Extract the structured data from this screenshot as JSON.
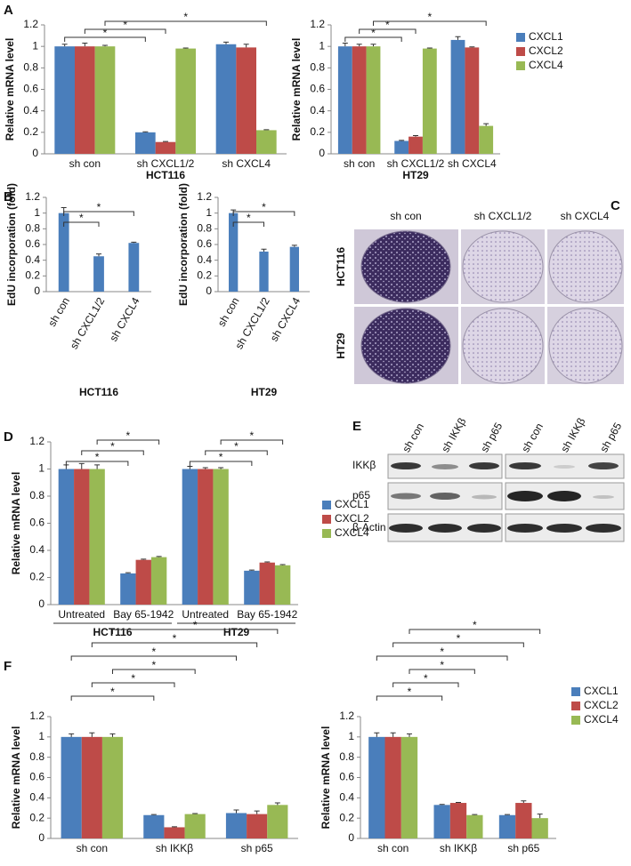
{
  "panels": {
    "letters": [
      "A",
      "B",
      "C",
      "D",
      "E",
      "F"
    ]
  },
  "colony_assay": {
    "columns": [
      "sh con",
      "sh CXCL1/2",
      "sh CXCL4"
    ],
    "rows": [
      "HCT116",
      "HT29"
    ]
  },
  "western_blot": {
    "lanes": [
      "sh con",
      "sh IKKβ",
      "sh p65",
      "sh con",
      "sh IKKβ",
      "sh p65"
    ],
    "rows": [
      "IKKβ",
      "p65",
      "β-Actin"
    ]
  },
  "chart_data": [
    {
      "type": "bar",
      "categories": [
        "sh con",
        "sh CXCL1/2",
        "sh CXCL4"
      ],
      "series": [
        {
          "name": "CXCL1",
          "color": "#4a7ebb",
          "values": [
            1.0,
            0.2,
            1.02
          ],
          "errors": [
            0.02,
            0.005,
            0.02
          ]
        },
        {
          "name": "CXCL2",
          "color": "#be4b48",
          "values": [
            1.0,
            0.11,
            0.99
          ],
          "errors": [
            0.03,
            0.005,
            0.03
          ]
        },
        {
          "name": "CXCL4",
          "color": "#98b954",
          "values": [
            1.0,
            0.98,
            0.22
          ],
          "errors": [
            0.01,
            0.005,
            0.005
          ]
        }
      ],
      "ylabel": "Relative mRNA level",
      "xlabel": "HCT116",
      "ylim": [
        0,
        1.2
      ],
      "yticks": [
        0,
        0.2,
        0.4,
        0.6,
        0.8,
        1,
        1.2
      ],
      "legend": false,
      "comparisons": [
        {
          "between": [
            0,
            1
          ],
          "label": "*"
        },
        {
          "between": [
            0,
            1
          ],
          "label": "*"
        },
        {
          "between": [
            0,
            2
          ],
          "label": "*"
        }
      ]
    },
    {
      "type": "bar",
      "categories": [
        "sh con",
        "sh CXCL1/2",
        "sh CXCL4"
      ],
      "series": [
        {
          "name": "CXCL1",
          "color": "#4a7ebb",
          "values": [
            1.0,
            0.12,
            1.06
          ],
          "errors": [
            0.03,
            0.005,
            0.03
          ]
        },
        {
          "name": "CXCL2",
          "color": "#be4b48",
          "values": [
            1.0,
            0.16,
            0.99
          ],
          "errors": [
            0.02,
            0.01,
            0.005
          ]
        },
        {
          "name": "CXCL4",
          "color": "#98b954",
          "values": [
            1.0,
            0.98,
            0.26
          ],
          "errors": [
            0.02,
            0.005,
            0.02
          ]
        }
      ],
      "ylabel": "Relative mRNA level",
      "xlabel": "HT29",
      "ylim": [
        0,
        1.2
      ],
      "yticks": [
        0,
        0.2,
        0.4,
        0.6,
        0.8,
        1,
        1.2
      ],
      "legend": "right",
      "comparisons": [
        {
          "between": [
            0,
            1
          ],
          "label": "*"
        },
        {
          "between": [
            0,
            1
          ],
          "label": "*"
        },
        {
          "between": [
            0,
            2
          ],
          "label": "*"
        }
      ]
    },
    {
      "type": "bar",
      "categories": [
        "sh con",
        "sh CXCL1/2",
        "sh CXCL4"
      ],
      "values": [
        1.0,
        0.45,
        0.62
      ],
      "errors": [
        0.07,
        0.03,
        0.01
      ],
      "color": "#4a7ebb",
      "ylabel": "EdU incorporation (fold)",
      "xlabel": "HCT116",
      "ylim": [
        0,
        1.2
      ],
      "yticks": [
        0,
        0.2,
        0.4,
        0.6,
        0.8,
        1,
        1.2
      ],
      "xtick_rotation": -60,
      "legend": false,
      "comparisons": [
        {
          "between": [
            0,
            1
          ],
          "label": "*"
        },
        {
          "between": [
            0,
            2
          ],
          "label": "*"
        }
      ]
    },
    {
      "type": "bar",
      "categories": [
        "sh con",
        "sh CXCL1/2",
        "sh CXCL4"
      ],
      "values": [
        1.0,
        0.51,
        0.57
      ],
      "errors": [
        0.04,
        0.03,
        0.02
      ],
      "color": "#4a7ebb",
      "ylabel": "EdU incorporation (fold)",
      "xlabel": "HT29",
      "ylim": [
        0,
        1.2
      ],
      "yticks": [
        0,
        0.2,
        0.4,
        0.6,
        0.8,
        1,
        1.2
      ],
      "xtick_rotation": -60,
      "legend": false,
      "comparisons": [
        {
          "between": [
            0,
            1
          ],
          "label": "*"
        },
        {
          "between": [
            0,
            2
          ],
          "label": "*"
        }
      ]
    },
    {
      "type": "bar",
      "categories": [
        "Untreated",
        "Bay 65-1942",
        "Untreated",
        "Bay 65-1942"
      ],
      "group_labels": [
        "HCT116",
        "HT29"
      ],
      "series": [
        {
          "name": "CXCL1",
          "color": "#4a7ebb",
          "values": [
            1.0,
            0.23,
            1.0,
            0.25
          ],
          "errors": [
            0.03,
            0.005,
            0.02,
            0.005
          ]
        },
        {
          "name": "CXCL2",
          "color": "#be4b48",
          "values": [
            1.0,
            0.33,
            1.0,
            0.31
          ],
          "errors": [
            0.04,
            0.005,
            0.01,
            0.005
          ]
        },
        {
          "name": "CXCL4",
          "color": "#98b954",
          "values": [
            1.0,
            0.35,
            1.0,
            0.29
          ],
          "errors": [
            0.03,
            0.005,
            0.01,
            0.005
          ]
        }
      ],
      "ylabel": "Relative mRNA level",
      "ylim": [
        0,
        1.2
      ],
      "yticks": [
        0,
        0.2,
        0.4,
        0.6,
        0.8,
        1,
        1.2
      ],
      "legend": "right",
      "comparisons": [
        {
          "between": [
            0,
            1
          ],
          "label": "*"
        },
        {
          "between": [
            0,
            1
          ],
          "label": "*"
        },
        {
          "between": [
            0,
            1
          ],
          "label": "*"
        },
        {
          "between": [
            2,
            3
          ],
          "label": "*"
        },
        {
          "between": [
            2,
            3
          ],
          "label": "*"
        },
        {
          "between": [
            2,
            3
          ],
          "label": "*"
        }
      ]
    },
    {
      "type": "bar",
      "categories": [
        "sh con",
        "sh IKKβ",
        "sh p65"
      ],
      "series": [
        {
          "name": "CXCL1",
          "color": "#4a7ebb",
          "values": [
            1.0,
            0.23,
            0.25
          ],
          "errors": [
            0.03,
            0.005,
            0.03
          ]
        },
        {
          "name": "CXCL2",
          "color": "#be4b48",
          "values": [
            1.0,
            0.11,
            0.24
          ],
          "errors": [
            0.04,
            0.005,
            0.03
          ]
        },
        {
          "name": "CXCL4",
          "color": "#98b954",
          "values": [
            1.0,
            0.24,
            0.33
          ],
          "errors": [
            0.03,
            0.005,
            0.02
          ]
        }
      ],
      "ylabel": "Relative mRNA level",
      "ylim": [
        0,
        1.2
      ],
      "yticks": [
        0,
        0.2,
        0.4,
        0.6,
        0.8,
        1,
        1.2
      ],
      "legend": false,
      "comparisons": [
        {
          "between": [
            0,
            1
          ],
          "label": "*"
        },
        {
          "between": [
            0,
            1
          ],
          "label": "*"
        },
        {
          "between": [
            0,
            1
          ],
          "label": "*"
        },
        {
          "between": [
            0,
            2
          ],
          "label": "*"
        },
        {
          "between": [
            0,
            2
          ],
          "label": "*"
        },
        {
          "between": [
            0,
            2
          ],
          "label": "*"
        }
      ]
    },
    {
      "type": "bar",
      "categories": [
        "sh con",
        "sh IKKβ",
        "sh p65"
      ],
      "series": [
        {
          "name": "CXCL1",
          "color": "#4a7ebb",
          "values": [
            1.0,
            0.33,
            0.23
          ],
          "errors": [
            0.04,
            0.005,
            0.005
          ]
        },
        {
          "name": "CXCL2",
          "color": "#be4b48",
          "values": [
            1.0,
            0.35,
            0.35
          ],
          "errors": [
            0.04,
            0.005,
            0.02
          ]
        },
        {
          "name": "CXCL4",
          "color": "#98b954",
          "values": [
            1.0,
            0.23,
            0.2
          ],
          "errors": [
            0.03,
            0.005,
            0.04
          ]
        }
      ],
      "ylabel": "Relative mRNA level",
      "ylim": [
        0,
        1.2
      ],
      "yticks": [
        0,
        0.2,
        0.4,
        0.6,
        0.8,
        1,
        1.2
      ],
      "legend": "right",
      "comparisons": [
        {
          "between": [
            0,
            1
          ],
          "label": "*"
        },
        {
          "between": [
            0,
            1
          ],
          "label": "*"
        },
        {
          "between": [
            0,
            1
          ],
          "label": "*"
        },
        {
          "between": [
            0,
            2
          ],
          "label": "*"
        },
        {
          "between": [
            0,
            2
          ],
          "label": "*"
        },
        {
          "between": [
            0,
            2
          ],
          "label": "*"
        }
      ]
    }
  ]
}
